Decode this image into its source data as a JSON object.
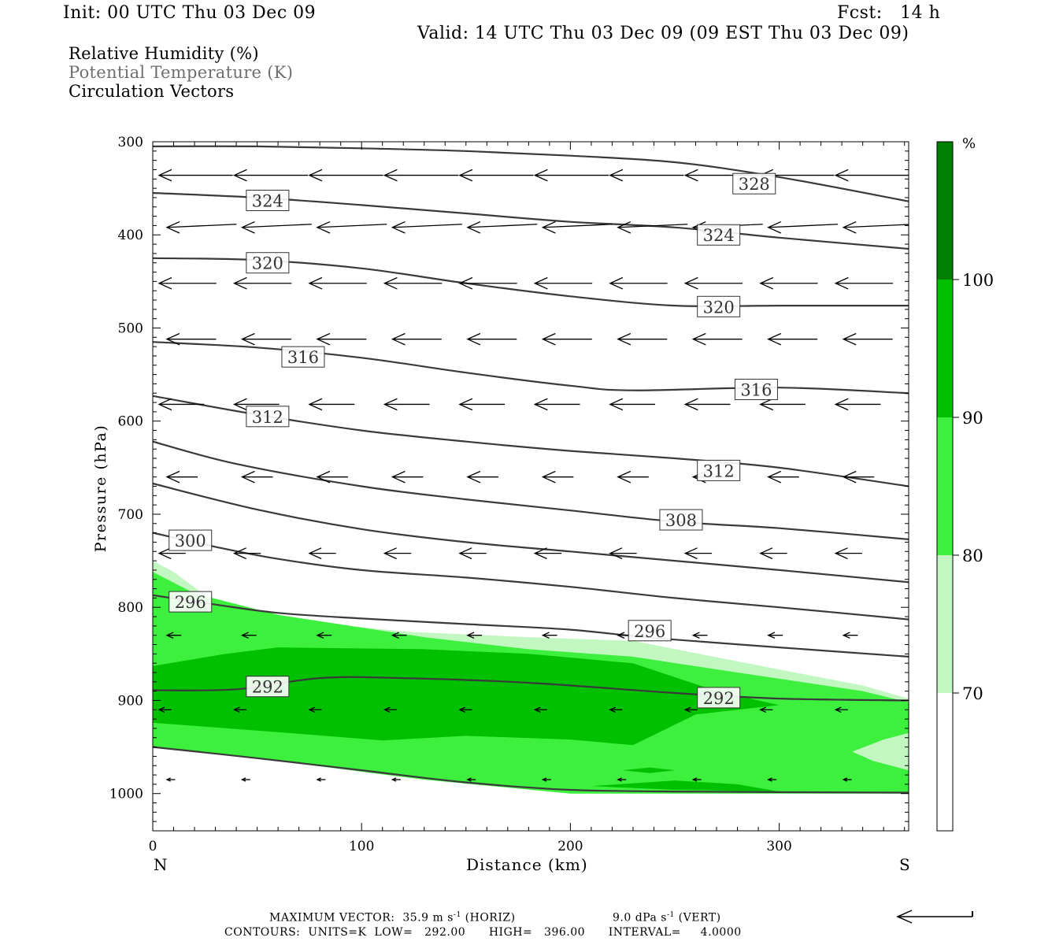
{
  "header": {
    "init": "Init: 00 UTC Thu 03 Dec 09",
    "fcst": "Fcst:   14 h",
    "valid": "Valid: 14 UTC Thu 03 Dec 09 (09 EST Thu 03 Dec 09)"
  },
  "legend": {
    "rh": "Relative Humidity (%)",
    "theta": "Potential Temperature (K)",
    "vectors": "Circulation Vectors"
  },
  "footer": {
    "line1_a": "MAXIMUM VECTOR:  35.9 m s",
    "line1_b": " (HORIZ)",
    "line1_c": "9.0 dPa s",
    "line1_d": " (VERT)",
    "exp": "-1",
    "line2": "CONTOURS:  UNITS=K  LOW=   292.00      HIGH=   396.00      INTERVAL=     4.0000"
  },
  "colors": {
    "rh_70_80": "#c2f7c2",
    "rh_80_90": "#3ef03e",
    "rh_90_100": "#00c000",
    "rh_100": "#008000",
    "contour": "#3a3a3a",
    "vector": "#000000"
  },
  "chart_data": {
    "type": "cross-section",
    "xlabel": "Distance (km)",
    "ylabel": "Pressure (hPa)",
    "x_ticks": [
      0,
      100,
      200,
      300
    ],
    "y_ticks": [
      300,
      400,
      500,
      600,
      700,
      800,
      900,
      1000
    ],
    "xlim": [
      0,
      362
    ],
    "ylim": [
      1040,
      300
    ],
    "x_endpoints": {
      "left": "N",
      "right": "S"
    },
    "colorbar": {
      "unit": "%",
      "levels": [
        70,
        80,
        90,
        100
      ],
      "labels": [
        "70",
        "80",
        "90",
        "100"
      ]
    },
    "theta_contours": [
      {
        "value": 328,
        "label": "328",
        "label_at": [
          288,
          345
        ],
        "points": [
          [
            0,
            305
          ],
          [
            50,
            305
          ],
          [
            100,
            307
          ],
          [
            150,
            310
          ],
          [
            200,
            315
          ],
          [
            250,
            322
          ],
          [
            300,
            338
          ],
          [
            362,
            364
          ]
        ]
      },
      {
        "value": 324,
        "label": "324",
        "label_at": [
          55,
          363
        ],
        "points": [
          [
            0,
            355
          ],
          [
            50,
            360
          ],
          [
            100,
            368
          ],
          [
            150,
            377
          ],
          [
            200,
            386
          ],
          [
            250,
            392
          ],
          [
            300,
            403
          ],
          [
            362,
            415
          ]
        ]
      },
      {
        "value": 324,
        "label": "324",
        "label_at": [
          271,
          400
        ],
        "points": []
      },
      {
        "value": 320,
        "label": "320",
        "label_at": [
          55,
          430
        ],
        "points": [
          [
            0,
            425
          ],
          [
            50,
            427
          ],
          [
            100,
            436
          ],
          [
            150,
            452
          ],
          [
            200,
            466
          ],
          [
            250,
            476
          ],
          [
            300,
            476
          ],
          [
            362,
            476
          ]
        ]
      },
      {
        "value": 320,
        "label": "320",
        "label_at": [
          271,
          477
        ],
        "points": []
      },
      {
        "value": 316,
        "label": "316",
        "label_at": [
          72,
          531
        ],
        "points": [
          [
            0,
            515
          ],
          [
            50,
            521
          ],
          [
            100,
            532
          ],
          [
            150,
            548
          ],
          [
            200,
            562
          ],
          [
            230,
            567
          ],
          [
            300,
            564
          ],
          [
            362,
            570
          ]
        ]
      },
      {
        "value": 316,
        "label": "316",
        "label_at": [
          289,
          566
        ],
        "points": []
      },
      {
        "value": 312,
        "label": "312",
        "label_at": [
          55,
          595
        ],
        "points": [
          [
            0,
            573
          ],
          [
            50,
            593
          ],
          [
            100,
            610
          ],
          [
            150,
            622
          ],
          [
            200,
            632
          ],
          [
            250,
            640
          ],
          [
            300,
            650
          ],
          [
            362,
            670
          ]
        ]
      },
      {
        "value": 312,
        "label": "312",
        "label_at": [
          271,
          653
        ],
        "points": []
      },
      {
        "value": 308,
        "label": "308",
        "label_at": [
          253,
          706
        ],
        "points": [
          [
            0,
            622
          ],
          [
            40,
            646
          ],
          [
            100,
            670
          ],
          [
            150,
            684
          ],
          [
            200,
            696
          ],
          [
            250,
            708
          ],
          [
            300,
            715
          ],
          [
            362,
            727
          ]
        ]
      },
      {
        "value": 304,
        "label": "",
        "label_at": null,
        "points": [
          [
            0,
            667
          ],
          [
            50,
            695
          ],
          [
            100,
            716
          ],
          [
            150,
            730
          ],
          [
            200,
            740
          ],
          [
            250,
            750
          ],
          [
            300,
            760
          ],
          [
            362,
            773
          ]
        ]
      },
      {
        "value": 300,
        "label": "300",
        "label_at": [
          18,
          728
        ],
        "points": [
          [
            0,
            720
          ],
          [
            30,
            735
          ],
          [
            60,
            748
          ],
          [
            100,
            760
          ],
          [
            150,
            768
          ],
          [
            200,
            778
          ],
          [
            250,
            790
          ],
          [
            300,
            800
          ],
          [
            362,
            813
          ]
        ]
      },
      {
        "value": 296,
        "label": "296",
        "label_at": [
          18,
          794
        ],
        "points": [
          [
            0,
            787
          ],
          [
            30,
            797
          ],
          [
            60,
            806
          ],
          [
            100,
            812
          ],
          [
            150,
            818
          ],
          [
            200,
            824
          ],
          [
            240,
            833
          ],
          [
            300,
            843
          ],
          [
            362,
            853
          ]
        ]
      },
      {
        "value": 296,
        "label": "296",
        "label_at": [
          238,
          825
        ],
        "points": []
      },
      {
        "value": 292,
        "label": "292",
        "label_at": [
          55,
          885
        ],
        "points": [
          [
            0,
            889
          ],
          [
            40,
            888
          ],
          [
            80,
            876
          ],
          [
            120,
            876
          ],
          [
            180,
            881
          ],
          [
            250,
            892
          ],
          [
            300,
            898
          ],
          [
            362,
            900
          ]
        ]
      },
      {
        "value": 292,
        "label": "292",
        "label_at": [
          271,
          897
        ],
        "points": []
      },
      {
        "value": 288,
        "label": "",
        "label_at": null,
        "points": [
          [
            0,
            950
          ],
          [
            50,
            962
          ],
          [
            100,
            975
          ],
          [
            150,
            988
          ],
          [
            200,
            996
          ],
          [
            260,
            998
          ],
          [
            362,
            999
          ]
        ]
      }
    ],
    "rh_regions": [
      {
        "level": "rh_70_80",
        "points": [
          [
            0,
            750
          ],
          [
            10,
            762
          ],
          [
            30,
            795
          ],
          [
            60,
            812
          ],
          [
            120,
            826
          ],
          [
            180,
            832
          ],
          [
            230,
            836
          ],
          [
            280,
            858
          ],
          [
            340,
            884
          ],
          [
            362,
            898
          ],
          [
            362,
            1000
          ],
          [
            200,
            1000
          ],
          [
            130,
            985
          ],
          [
            60,
            965
          ],
          [
            0,
            950
          ]
        ]
      },
      {
        "level": "rh_80_90",
        "points": [
          [
            0,
            762
          ],
          [
            20,
            785
          ],
          [
            60,
            808
          ],
          [
            130,
            832
          ],
          [
            180,
            845
          ],
          [
            230,
            853
          ],
          [
            280,
            870
          ],
          [
            340,
            890
          ],
          [
            362,
            902
          ],
          [
            362,
            1000
          ],
          [
            200,
            1000
          ],
          [
            130,
            985
          ],
          [
            60,
            965
          ],
          [
            0,
            950
          ]
        ]
      },
      {
        "level": "rh_90_100",
        "points": [
          [
            0,
            863
          ],
          [
            35,
            850
          ],
          [
            60,
            843
          ],
          [
            130,
            845
          ],
          [
            180,
            850
          ],
          [
            230,
            860
          ],
          [
            270,
            890
          ],
          [
            300,
            905
          ],
          [
            260,
            915
          ],
          [
            230,
            948
          ],
          [
            200,
            942
          ],
          [
            150,
            938
          ],
          [
            110,
            943
          ],
          [
            60,
            934
          ],
          [
            0,
            924
          ]
        ]
      },
      {
        "level": "rh_90_100",
        "points": [
          [
            210,
            992
          ],
          [
            250,
            986
          ],
          [
            280,
            990
          ],
          [
            300,
            998
          ],
          [
            250,
            996
          ]
        ]
      },
      {
        "level": "rh_90_100",
        "points": [
          [
            225,
            975
          ],
          [
            238,
            972
          ],
          [
            250,
            975
          ],
          [
            238,
            978
          ]
        ]
      },
      {
        "level": "rh_70_80",
        "points": [
          [
            335,
            955
          ],
          [
            350,
            942
          ],
          [
            362,
            935
          ],
          [
            362,
            975
          ],
          [
            345,
            965
          ]
        ]
      }
    ],
    "vectors": {
      "x_km": [
        0,
        36,
        72,
        108,
        144,
        180,
        216,
        252,
        288,
        324,
        360
      ],
      "levels": [
        {
          "p": 336,
          "dx": -36,
          "dp": 0.0
        },
        {
          "p": 392,
          "dx": -34,
          "dp": -4.0
        },
        {
          "p": 452,
          "dx": -28,
          "dp": 0.0
        },
        {
          "p": 512,
          "dx": -24,
          "dp": 0.0
        },
        {
          "p": 582,
          "dx": -22,
          "dp": 0.0
        },
        {
          "p": 660,
          "dx": -15,
          "dp": 0.0
        },
        {
          "p": 742,
          "dx": -13,
          "dp": 0.0
        },
        {
          "p": 830,
          "dx": -7,
          "dp": 0.0
        },
        {
          "p": 910,
          "dx": -6,
          "dp": 0.0
        },
        {
          "p": 985,
          "dx": -4,
          "dp": 0.0
        }
      ]
    }
  }
}
